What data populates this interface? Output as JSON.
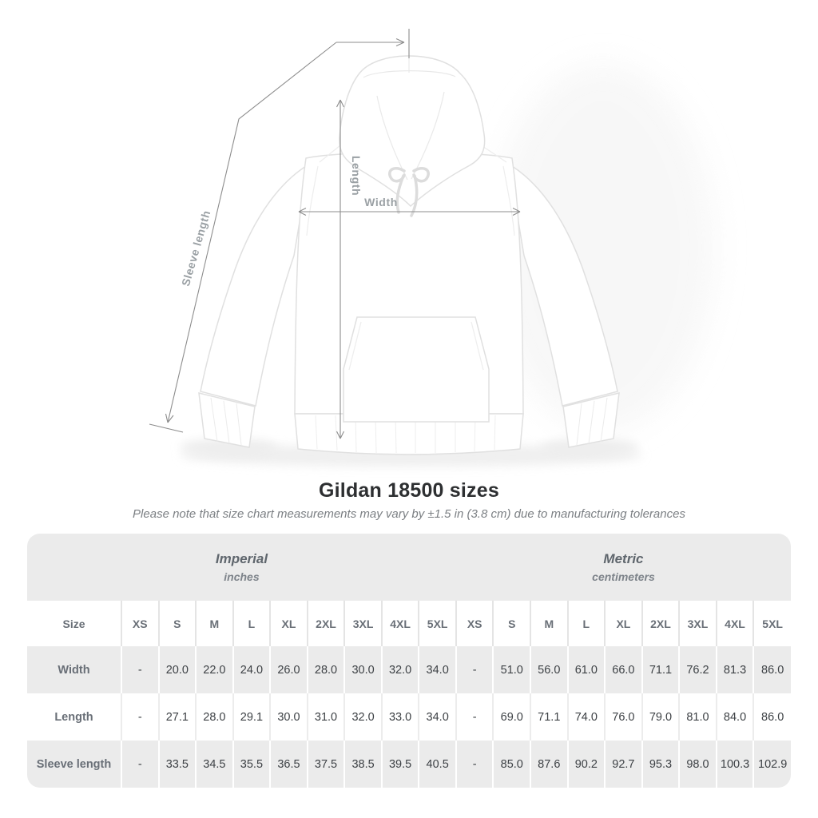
{
  "figure": {
    "sleeve_length_label": "Sleeve length",
    "length_label": "Length",
    "width_label": "Width"
  },
  "chart_data": {
    "type": "table",
    "title": "Gildan 18500 sizes",
    "note": "Please note that size chart measurements may vary by ±1.5 in (3.8 cm) due to manufacturing tolerances",
    "groups": [
      {
        "label": "Imperial",
        "unit": "inches"
      },
      {
        "label": "Metric",
        "unit": "centimeters"
      }
    ],
    "size_header": "Size",
    "sizes": [
      "XS",
      "S",
      "M",
      "L",
      "XL",
      "2XL",
      "3XL",
      "4XL",
      "5XL"
    ],
    "rows": [
      {
        "label": "Width",
        "imperial": [
          "-",
          "20.0",
          "22.0",
          "24.0",
          "26.0",
          "28.0",
          "30.0",
          "32.0",
          "34.0"
        ],
        "metric": [
          "-",
          "51.0",
          "56.0",
          "61.0",
          "66.0",
          "71.1",
          "76.2",
          "81.3",
          "86.0"
        ]
      },
      {
        "label": "Length",
        "imperial": [
          "-",
          "27.1",
          "28.0",
          "29.1",
          "30.0",
          "31.0",
          "32.0",
          "33.0",
          "34.0"
        ],
        "metric": [
          "-",
          "69.0",
          "71.1",
          "74.0",
          "76.0",
          "79.0",
          "81.0",
          "84.0",
          "86.0"
        ]
      },
      {
        "label": "Sleeve length",
        "imperial": [
          "-",
          "33.5",
          "34.5",
          "35.5",
          "36.5",
          "37.5",
          "38.5",
          "39.5",
          "40.5"
        ],
        "metric": [
          "-",
          "85.0",
          "87.6",
          "90.2",
          "92.7",
          "95.3",
          "98.0",
          "100.3",
          "102.9"
        ]
      }
    ]
  },
  "colors": {
    "table_band": "#ebebeb",
    "row_alt": "#ebebeb",
    "label_text": "#696f77",
    "value_text": "#3d4145",
    "dimension_line": "#8d8d8d",
    "dimension_label": "#9aa0a4",
    "title_text": "#2d2f31"
  }
}
